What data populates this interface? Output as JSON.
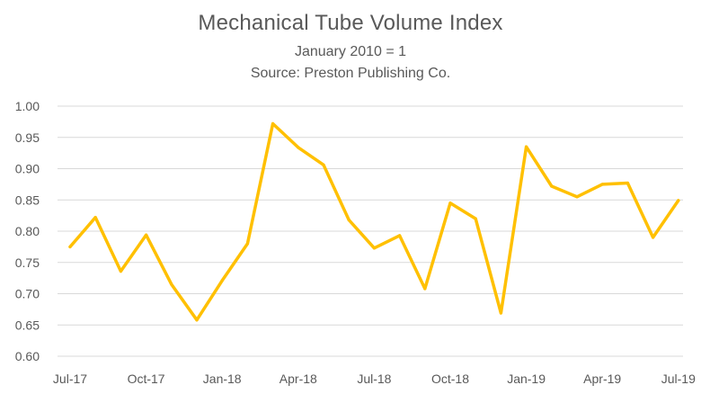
{
  "chart_data": {
    "type": "line",
    "title": "Mechanical Tube Volume Index",
    "subtitle": "January 2010 = 1",
    "source": "Source:  Preston Publishing  Co.",
    "xlabel": "",
    "ylabel": "",
    "ylim": [
      0.6,
      1.0
    ],
    "yticks": [
      "0.60",
      "0.65",
      "0.70",
      "0.75",
      "0.80",
      "0.85",
      "0.90",
      "0.95",
      "1.00"
    ],
    "xtick_labels": [
      "Jul-17",
      "Oct-17",
      "Jan-18",
      "Apr-18",
      "Jul-18",
      "Oct-18",
      "Jan-19",
      "Apr-19",
      "Jul-19"
    ],
    "grid": true,
    "legend": "none",
    "line_color": "#FFC000",
    "x": [
      "Jul-17",
      "Aug-17",
      "Sep-17",
      "Oct-17",
      "Nov-17",
      "Dec-17",
      "Jan-18",
      "Feb-18",
      "Mar-18",
      "Apr-18",
      "May-18",
      "Jun-18",
      "Jul-18",
      "Aug-18",
      "Sep-18",
      "Oct-18",
      "Nov-18",
      "Dec-18",
      "Jan-19",
      "Feb-19",
      "Mar-19",
      "Apr-19",
      "May-19",
      "Jun-19",
      "Jul-19"
    ],
    "series": [
      {
        "values": [
          0.775,
          0.822,
          0.736,
          0.794,
          0.715,
          0.658,
          0.721,
          0.78,
          0.972,
          0.934,
          0.906,
          0.818,
          0.773,
          0.793,
          0.708,
          0.845,
          0.82,
          0.669,
          0.935,
          0.872,
          0.855,
          0.875,
          0.877,
          0.79,
          0.849
        ]
      }
    ]
  }
}
